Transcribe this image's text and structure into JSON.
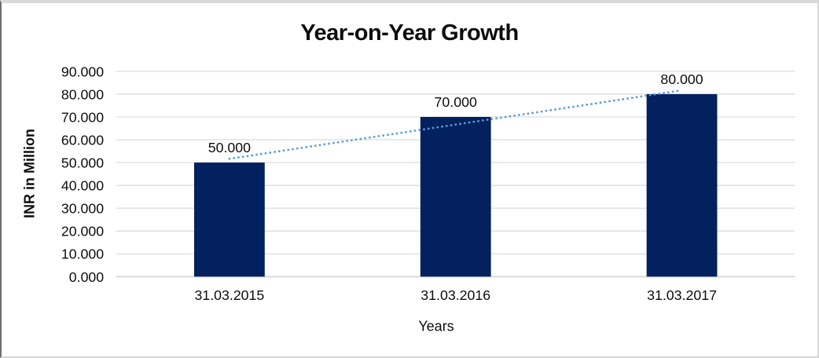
{
  "chart_data": {
    "type": "bar",
    "title": "Year-on-Year Growth",
    "xlabel": "Years",
    "ylabel": "INR in Million",
    "categories": [
      "31.03.2015",
      "31.03.2016",
      "31.03.2017"
    ],
    "series": [
      {
        "name": "INR in Million",
        "values": [
          50,
          70,
          80
        ]
      }
    ],
    "bar_value_labels": [
      "50.000",
      "70.000",
      "80.000"
    ],
    "ytick_labels": [
      "0.000",
      "10.000",
      "20.000",
      "30.000",
      "40.000",
      "50.000",
      "60.000",
      "70.000",
      "80.000",
      "90.000"
    ],
    "ytick_step": 10,
    "ylim": [
      0,
      90
    ],
    "grid": true,
    "legend": "none",
    "trendline": {
      "kind": "linear",
      "style": "dotted"
    },
    "colors": {
      "bar": "#02215e",
      "trendline": "#5b9bd5",
      "gridline": "#d9d9d9",
      "axis_line": "#d9d9d9",
      "text": "#0d0d0d",
      "background": "#ffffff"
    }
  }
}
